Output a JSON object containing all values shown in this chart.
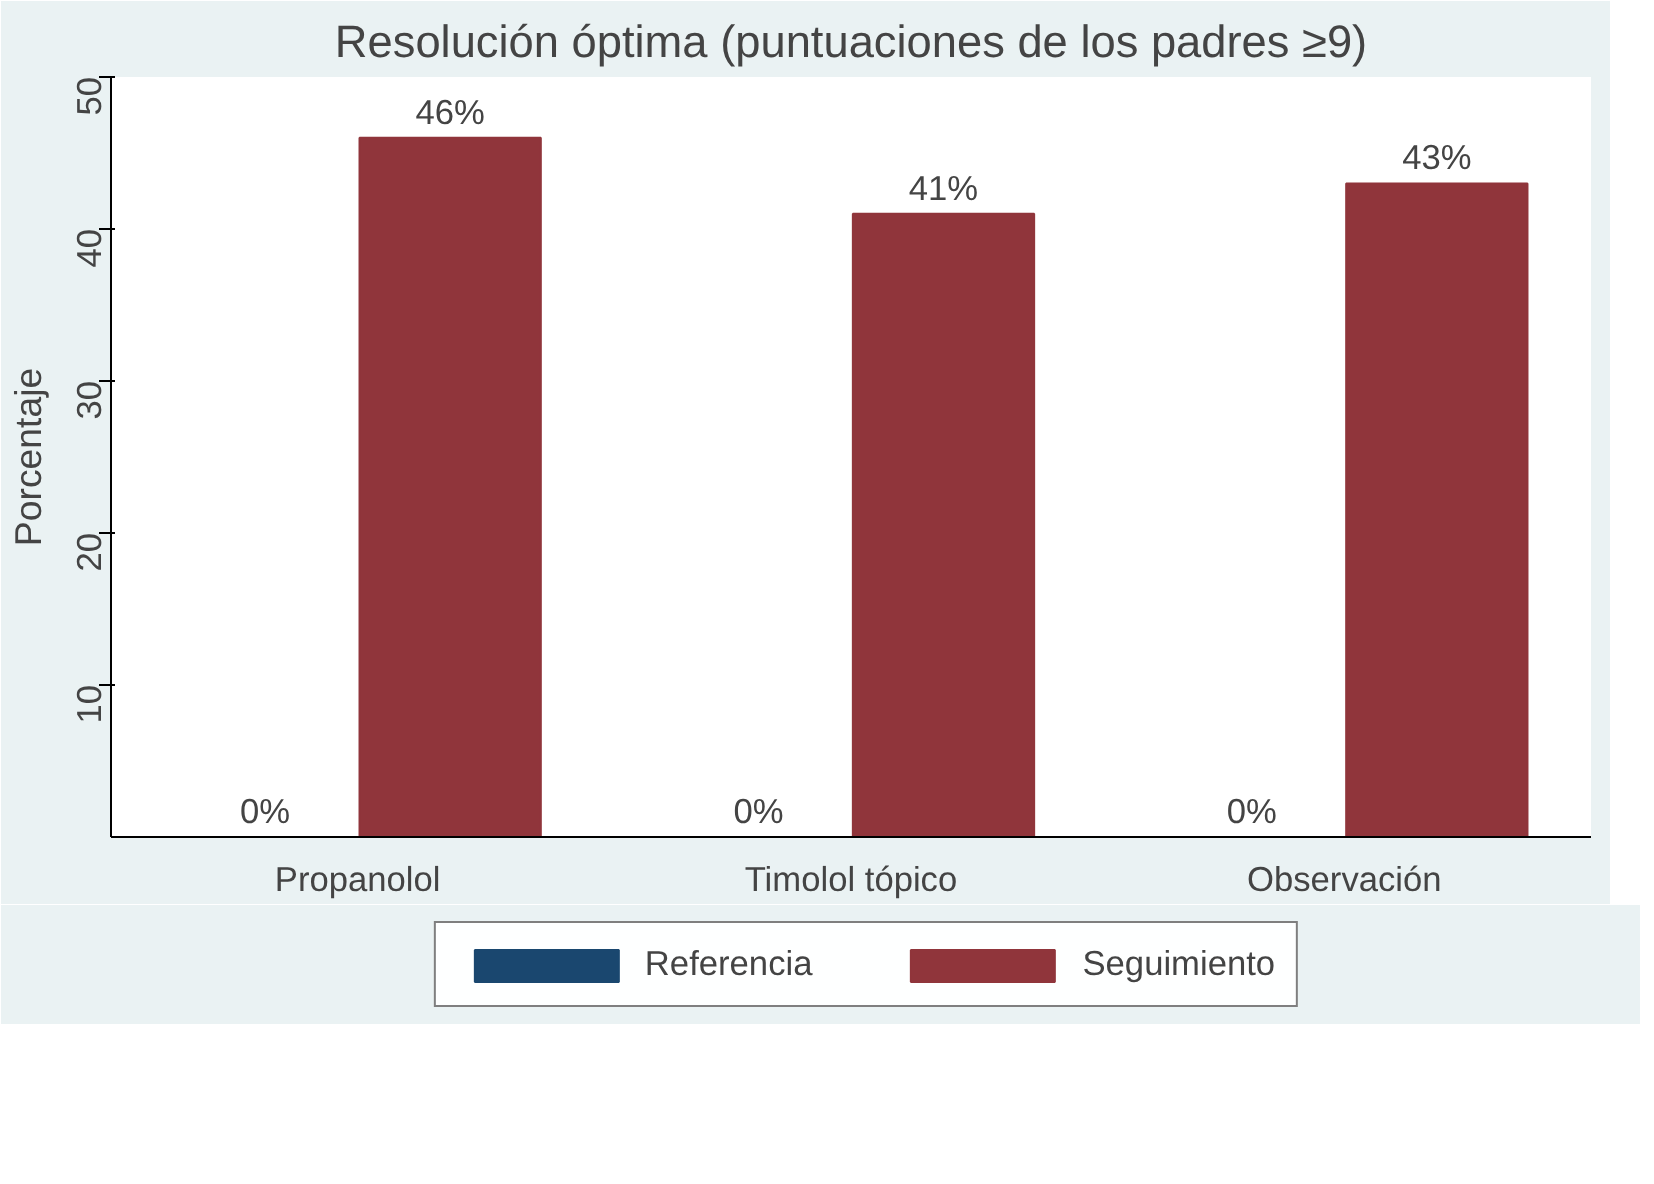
{
  "chart_data": {
    "type": "bar",
    "title": "Resolución óptima (puntuaciones de los padres ≥9)",
    "ylabel": "Porcentaje",
    "categories": [
      "Propanolol",
      "Timolol tópico",
      "Observación"
    ],
    "series": [
      {
        "name": "Referencia",
        "color": "#1a476f",
        "values": [
          0,
          0,
          0
        ],
        "value_labels": [
          "0%",
          "0%",
          "0%"
        ]
      },
      {
        "name": "Seguimiento",
        "color": "#90353b",
        "values": [
          46,
          41,
          43
        ],
        "value_labels": [
          "46%",
          "41%",
          "43%"
        ]
      }
    ],
    "ylim": [
      0,
      50
    ],
    "yticks": [
      10,
      20,
      30,
      40,
      50
    ],
    "legend": "bottom"
  }
}
